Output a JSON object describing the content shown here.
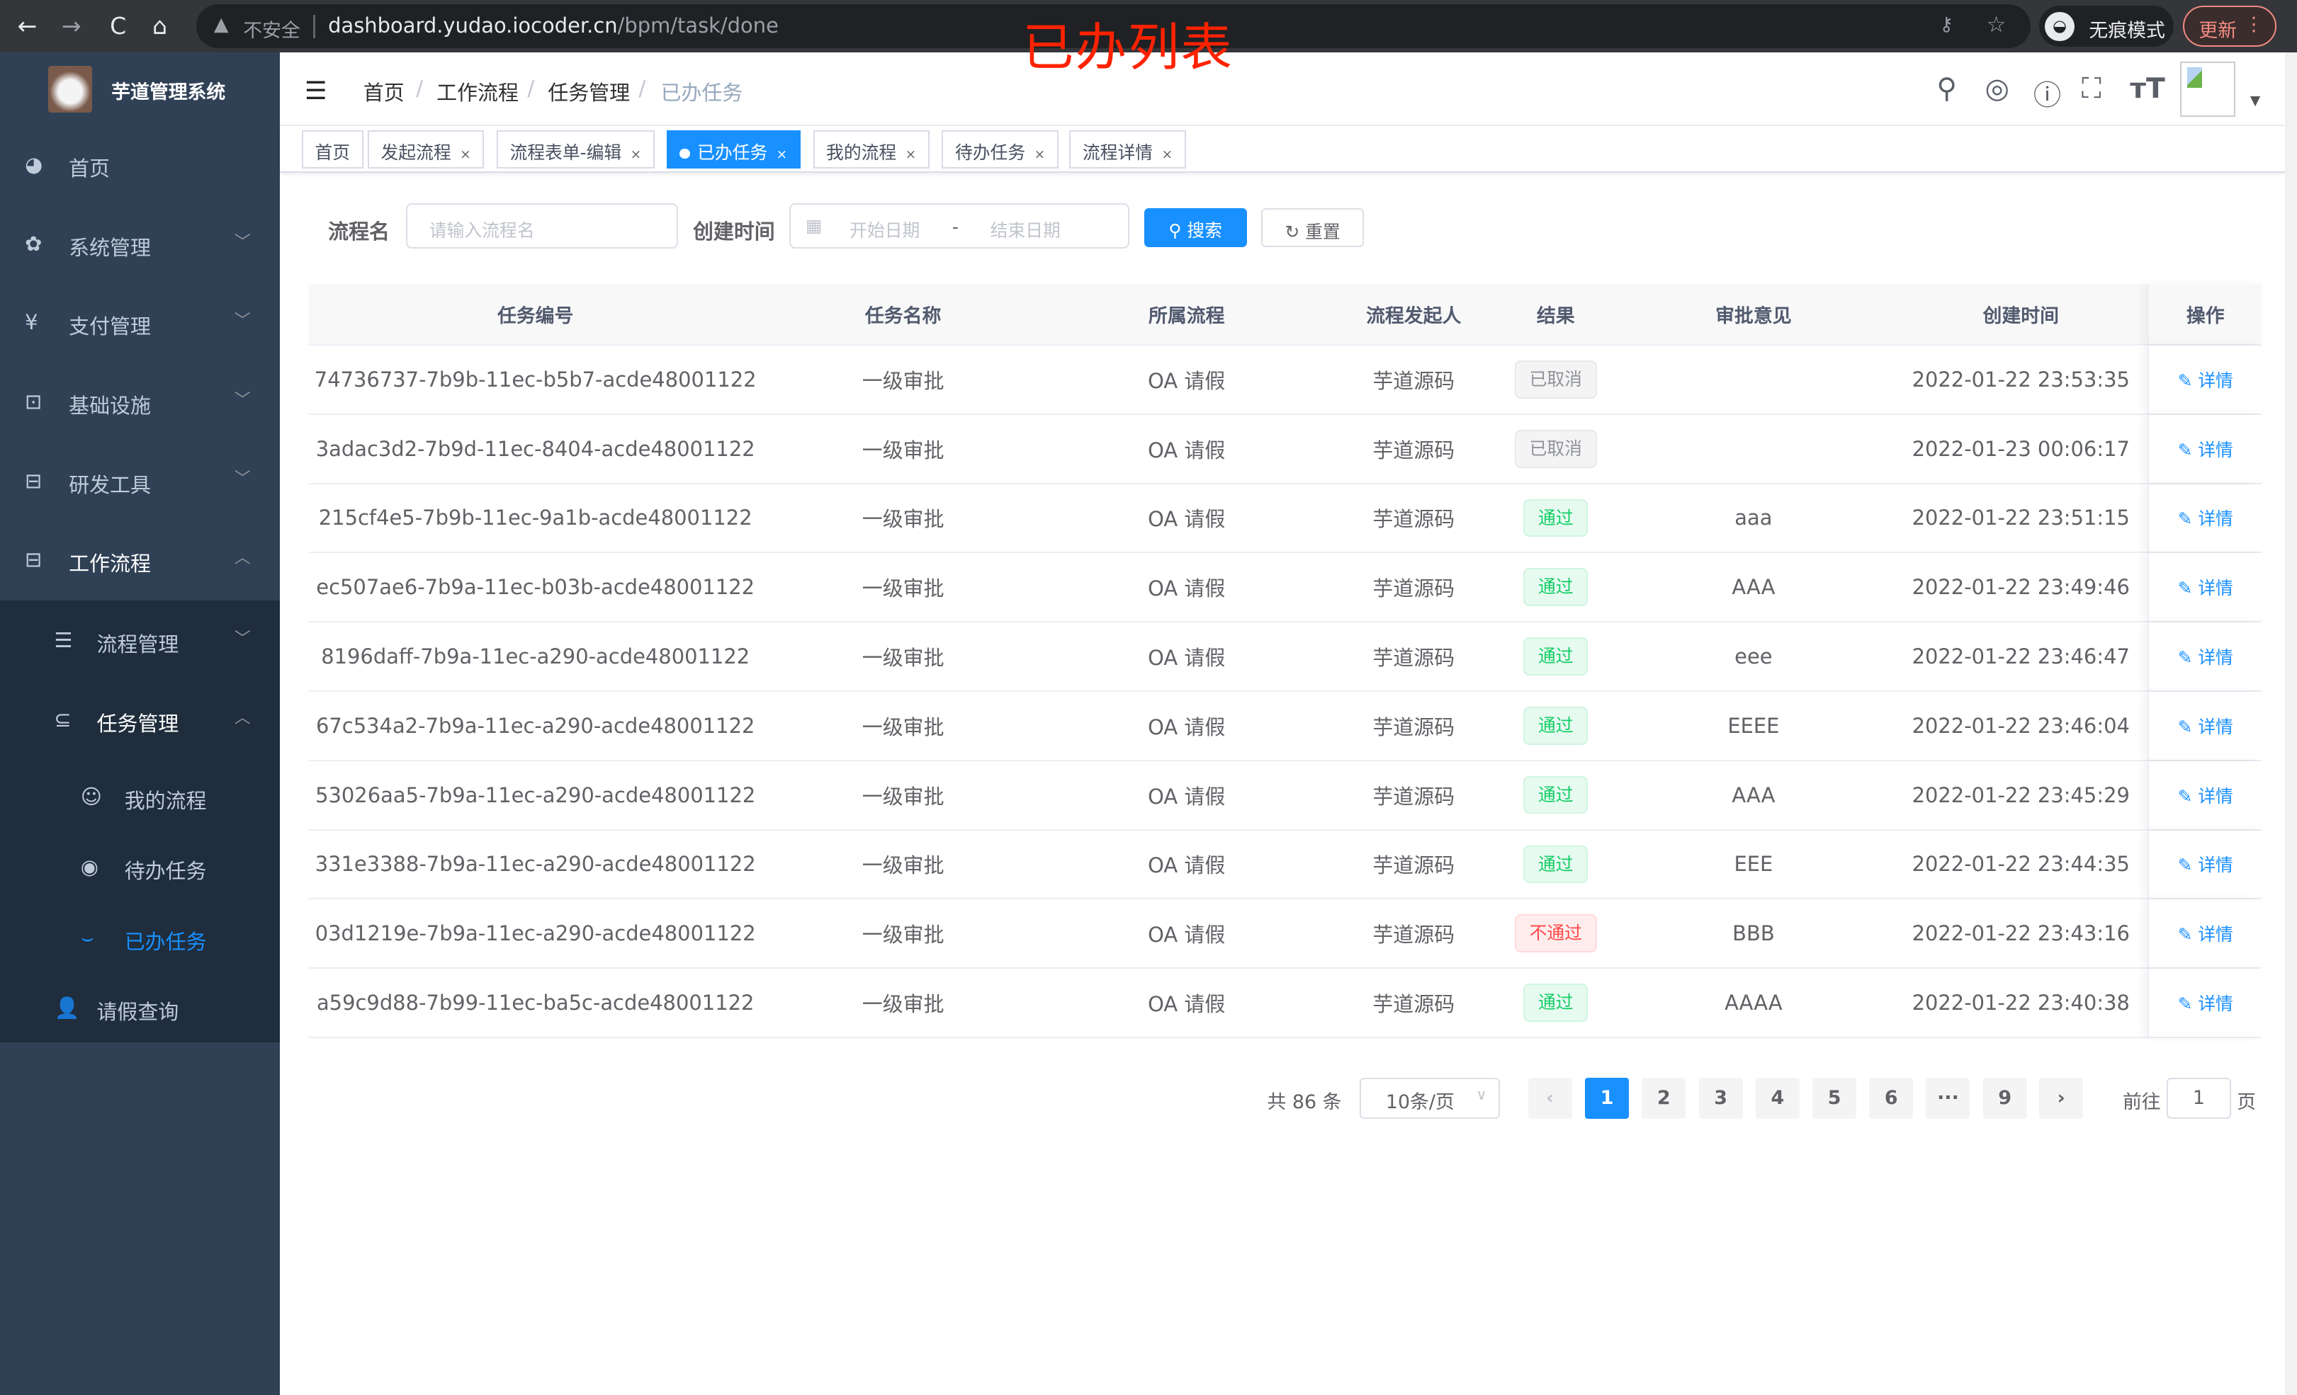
{
  "browser": {
    "back": "←",
    "forward": "→",
    "reload": "C",
    "home": "⌂",
    "security": "不安全",
    "url_host": "dashboard.yudao.iocoder.cn",
    "url_path": "/bpm/task/done",
    "incognito": "无痕模式",
    "update": "更新"
  },
  "annotation": "已办列表",
  "sidebar": {
    "title": "芋道管理系统",
    "items": [
      {
        "label": "首页",
        "icon": "dashboard-icon"
      },
      {
        "label": "系统管理",
        "icon": "gear-icon"
      },
      {
        "label": "支付管理",
        "icon": "yen-icon"
      },
      {
        "label": "基础设施",
        "icon": "monitor-icon"
      },
      {
        "label": "研发工具",
        "icon": "toolbox-icon"
      },
      {
        "label": "工作流程",
        "icon": "toolbox-icon"
      },
      {
        "label": "流程管理",
        "icon": "list-icon"
      },
      {
        "label": "任务管理",
        "icon": "task-icon"
      },
      {
        "label": "我的流程",
        "icon": "chat-icon"
      },
      {
        "label": "待办任务",
        "icon": "eye-icon"
      },
      {
        "label": "已办任务",
        "icon": "eye-closed-icon"
      },
      {
        "label": "请假查询",
        "icon": "user-icon"
      }
    ]
  },
  "breadcrumb": [
    "首页",
    "工作流程",
    "任务管理",
    "已办任务"
  ],
  "tags": [
    "首页",
    "发起流程",
    "流程表单-编辑",
    "已办任务",
    "我的流程",
    "待办任务",
    "流程详情"
  ],
  "search": {
    "name_label": "流程名",
    "name_placeholder": "请输入流程名",
    "time_label": "创建时间",
    "start_placeholder": "开始日期",
    "sep": "-",
    "end_placeholder": "结束日期",
    "search": "搜索",
    "reset": "重置"
  },
  "table": {
    "columns": [
      "任务编号",
      "任务名称",
      "所属流程",
      "流程发起人",
      "结果",
      "审批意见",
      "创建时间",
      "操作"
    ],
    "rows": [
      [
        "74736737-7b9b-11ec-b5b7-acde48001122",
        "一级审批",
        "OA 请假",
        "芋道源码",
        "已取消",
        "",
        "2022-01-22 23:53:35",
        "详情"
      ],
      [
        "3adac3d2-7b9d-11ec-8404-acde48001122",
        "一级审批",
        "OA 请假",
        "芋道源码",
        "已取消",
        "",
        "2022-01-23 00:06:17",
        "详情"
      ],
      [
        "215cf4e5-7b9b-11ec-9a1b-acde48001122",
        "一级审批",
        "OA 请假",
        "芋道源码",
        "通过",
        "aaa",
        "2022-01-22 23:51:15",
        "详情"
      ],
      [
        "ec507ae6-7b9a-11ec-b03b-acde48001122",
        "一级审批",
        "OA 请假",
        "芋道源码",
        "通过",
        "AAA",
        "2022-01-22 23:49:46",
        "详情"
      ],
      [
        "8196daff-7b9a-11ec-a290-acde48001122",
        "一级审批",
        "OA 请假",
        "芋道源码",
        "通过",
        "eee",
        "2022-01-22 23:46:47",
        "详情"
      ],
      [
        "67c534a2-7b9a-11ec-a290-acde48001122",
        "一级审批",
        "OA 请假",
        "芋道源码",
        "通过",
        "EEEE",
        "2022-01-22 23:46:04",
        "详情"
      ],
      [
        "53026aa5-7b9a-11ec-a290-acde48001122",
        "一级审批",
        "OA 请假",
        "芋道源码",
        "通过",
        "AAA",
        "2022-01-22 23:45:29",
        "详情"
      ],
      [
        "331e3388-7b9a-11ec-a290-acde48001122",
        "一级审批",
        "OA 请假",
        "芋道源码",
        "通过",
        "EEE",
        "2022-01-22 23:44:35",
        "详情"
      ],
      [
        "03d1219e-7b9a-11ec-a290-acde48001122",
        "一级审批",
        "OA 请假",
        "芋道源码",
        "不通过",
        "BBB",
        "2022-01-22 23:43:16",
        "详情"
      ],
      [
        "a59c9d88-7b99-11ec-ba5c-acde48001122",
        "一级审批",
        "OA 请假",
        "芋道源码",
        "通过",
        "AAAA",
        "2022-01-22 23:40:38",
        "详情"
      ]
    ]
  },
  "result_colors": {
    "已取消": "#909399",
    "通过": "#13ce66",
    "不通过": "#ff4949"
  },
  "pagination": {
    "total": "共 86 条",
    "page_size": "10条/页",
    "pages": [
      "1",
      "2",
      "3",
      "4",
      "5",
      "6",
      "···",
      "9"
    ],
    "current": "1",
    "goto_label": "前往",
    "goto_value": "1",
    "goto_suffix": "页"
  },
  "colors": {
    "primary": "#1890ff",
    "sidebar": "#304156",
    "submenu": "#1f2d3d"
  }
}
